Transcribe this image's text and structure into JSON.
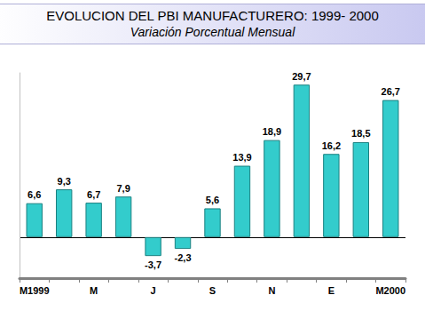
{
  "chart_data": {
    "type": "bar",
    "title": "EVOLUCION DEL PBI MANUFACTURERO: 1999- 2000",
    "subtitle": "Variación Porcentual Mensual",
    "categories": [
      "M1999",
      null,
      "M",
      null,
      "J",
      null,
      "S",
      null,
      "N",
      null,
      "E",
      null,
      "M2000"
    ],
    "values": [
      6.6,
      9.3,
      6.7,
      7.9,
      -3.7,
      -2.3,
      5.6,
      13.9,
      18.9,
      29.7,
      16.2,
      18.5,
      26.7
    ],
    "value_labels": [
      "6,6",
      "9,3",
      "6,7",
      "7,9",
      "-3,7",
      "-2,3",
      "5,6",
      "13,9",
      "18,9",
      "29,7",
      "16,2",
      "18,5",
      "26,7"
    ],
    "color": "#33cccc",
    "ylim": [
      -8,
      32
    ],
    "yticks": [
      0
    ],
    "grid": true,
    "data_labels": true,
    "tick_labels": "x"
  }
}
